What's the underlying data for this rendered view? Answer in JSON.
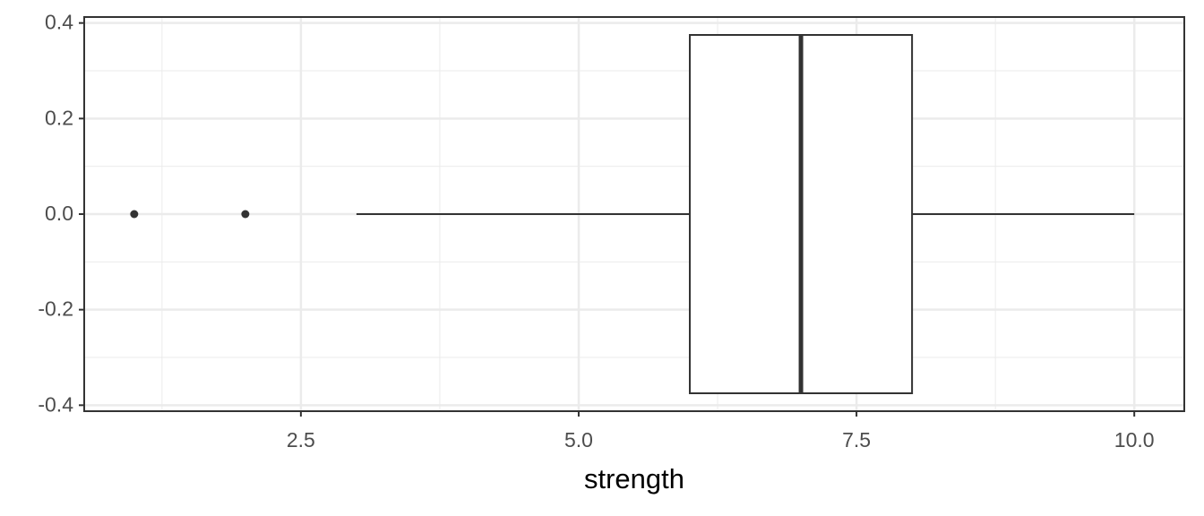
{
  "chart_data": {
    "type": "boxplot",
    "orientation": "horizontal",
    "x_label": "strength",
    "xlim": [
      0.55,
      10.45
    ],
    "ylim": [
      -0.4125,
      0.4125
    ],
    "xticks": [
      2.5,
      {
        "value": 5,
        "label": "5.0"
      },
      7.5,
      {
        "value": 10,
        "label": "10.0"
      }
    ],
    "yticks": [
      0.4,
      0.2,
      {
        "value": 0,
        "label": "0.0"
      },
      -0.2,
      -0.4
    ],
    "x_minor_ticks": [
      1.25,
      3.75,
      6.25,
      8.75
    ],
    "y_minor_ticks": [
      0.3,
      0.1,
      -0.1,
      -0.3
    ],
    "grid": true,
    "box_width": 0.75,
    "color": "#333333",
    "fill": "#ffffff",
    "boxes": [
      {
        "y": 0,
        "low": 3,
        "q1": 6,
        "median": 7,
        "q3": 8,
        "high": 10,
        "outliers": [
          1,
          2
        ]
      }
    ]
  }
}
